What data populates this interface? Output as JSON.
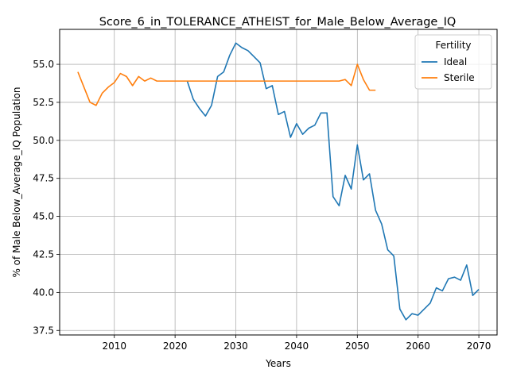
{
  "chart_data": {
    "type": "line",
    "title": "Score_6_in_TOLERANCE_ATHEIST_for_Male_Below_Average_IQ",
    "xlabel": "Years",
    "ylabel": "% of Male Below_Average_IQ Population",
    "xlim": [
      2001,
      2073
    ],
    "ylim": [
      37.2,
      57.3
    ],
    "xticks": [
      2010,
      2020,
      2030,
      2040,
      2050,
      2060,
      2070
    ],
    "yticks": [
      37.5,
      40.0,
      42.5,
      45.0,
      47.5,
      50.0,
      52.5,
      55.0
    ],
    "xtick_labels": [
      "2010",
      "2020",
      "2030",
      "2040",
      "2050",
      "2060",
      "2070"
    ],
    "ytick_labels": [
      "37.5",
      "40.0",
      "42.5",
      "45.0",
      "47.5",
      "50.0",
      "52.5",
      "55.0"
    ],
    "grid": true,
    "legend": {
      "title": "Fertility",
      "placement": "top-right",
      "entries": [
        "Ideal",
        "Sterile"
      ]
    },
    "series": [
      {
        "name": "Ideal",
        "color": "#1f77b4",
        "x": [
          2022,
          2023,
          2024,
          2025,
          2026,
          2027,
          2028,
          2029,
          2030,
          2031,
          2032,
          2033,
          2034,
          2035,
          2036,
          2037,
          2038,
          2039,
          2040,
          2041,
          2042,
          2043,
          2044,
          2045,
          2046,
          2047,
          2048,
          2049,
          2050,
          2051,
          2052,
          2053,
          2054,
          2055,
          2056,
          2057,
          2058,
          2059,
          2060,
          2061,
          2062,
          2063,
          2064,
          2065,
          2066,
          2067,
          2068,
          2069,
          2070
        ],
        "y": [
          53.9,
          52.7,
          52.1,
          51.6,
          52.3,
          54.2,
          54.5,
          55.6,
          56.4,
          56.1,
          55.9,
          55.5,
          55.1,
          53.4,
          53.6,
          51.7,
          51.9,
          50.2,
          51.1,
          50.4,
          50.8,
          51.0,
          51.8,
          51.8,
          46.3,
          45.7,
          47.7,
          46.8,
          49.7,
          47.4,
          47.8,
          45.4,
          44.5,
          42.8,
          42.4,
          38.9,
          38.2,
          38.6,
          38.5,
          38.9,
          39.3,
          40.3,
          40.1,
          40.9,
          41.0,
          40.8,
          41.8,
          39.8,
          40.2
        ]
      },
      {
        "name": "Sterile",
        "color": "#ff7f0e",
        "x": [
          2004,
          2005,
          2006,
          2007,
          2008,
          2009,
          2010,
          2011,
          2012,
          2013,
          2014,
          2015,
          2016,
          2017,
          2018,
          2019,
          2020,
          2021,
          2022,
          2023,
          2024,
          2025,
          2026,
          2027,
          2028,
          2029,
          2030,
          2031,
          2032,
          2033,
          2034,
          2035,
          2036,
          2037,
          2038,
          2039,
          2040,
          2041,
          2042,
          2043,
          2044,
          2045,
          2046,
          2047,
          2048,
          2049,
          2050,
          2051,
          2052,
          2053
        ],
        "y": [
          54.5,
          53.5,
          52.5,
          52.3,
          53.1,
          53.5,
          53.8,
          54.4,
          54.2,
          53.6,
          54.2,
          53.9,
          54.1,
          53.9,
          53.9,
          53.9,
          53.9,
          53.9,
          53.9,
          53.9,
          53.9,
          53.9,
          53.9,
          53.9,
          53.9,
          53.9,
          53.9,
          53.9,
          53.9,
          53.9,
          53.9,
          53.9,
          53.9,
          53.9,
          53.9,
          53.9,
          53.9,
          53.9,
          53.9,
          53.9,
          53.9,
          53.9,
          53.9,
          53.9,
          54.0,
          53.6,
          55.0,
          54.0,
          53.3,
          53.3
        ]
      }
    ]
  }
}
